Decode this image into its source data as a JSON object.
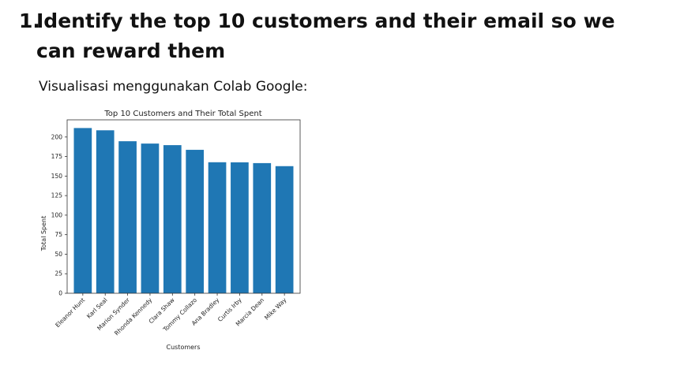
{
  "heading": {
    "number": "1.",
    "text": "Identify the top 10 customers and their email so we can reward them"
  },
  "subtitle": "Visualisasi menggunakan Colab Google:",
  "chart_data": {
    "type": "bar",
    "title": "Top 10 Customers and Their Total Spent",
    "xlabel": "Customers",
    "ylabel": "Total Spent",
    "categories": [
      "Eleanor Hunt",
      "Karl Seal",
      "Marion Synder",
      "Rhonda Kennedy",
      "Clara Shaw",
      "Tommy Collazo",
      "Ana Bradley",
      "Curtis Irby",
      "Marcia Dean",
      "Mike Way"
    ],
    "values": [
      211.5,
      208.6,
      194.6,
      191.6,
      189.6,
      183.6,
      167.7,
      167.6,
      166.6,
      162.7
    ],
    "yticks": [
      0,
      25,
      50,
      75,
      100,
      125,
      150,
      175,
      200
    ],
    "ylim": [
      0,
      222
    ],
    "bar_color": "#1f77b4",
    "grid": false,
    "legend": "none"
  }
}
